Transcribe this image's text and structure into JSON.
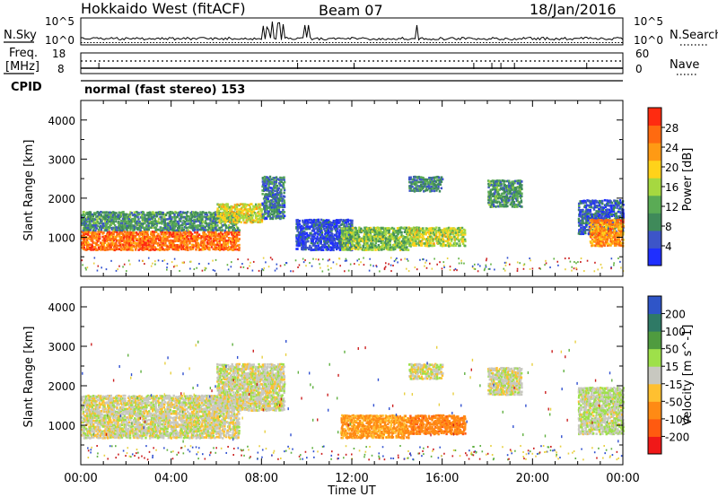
{
  "header": {
    "station": "Hokkaido West (fitACF)",
    "beam": "Beam 07",
    "date": "18/Jan/2016"
  },
  "strip": {
    "nsky_label": "N.Sky",
    "nsky_ticks": [
      "10^5",
      "10^0"
    ],
    "nsearch_label": "N.Search",
    "nsearch_ticks": [
      "10^5",
      "10^0"
    ],
    "freq_label": "Freq.",
    "freq_unit": "[MHz]",
    "freq_ticks": [
      "18",
      "8"
    ],
    "nave_label": "Nave",
    "nave_ticks": [
      "60",
      "0"
    ],
    "cpid_label": "CPID",
    "cpid_text": "normal (fast stereo) 153"
  },
  "colors": {
    "power_scale": [
      "#1f2fff",
      "#3d55c8",
      "#3f8a5a",
      "#5aab55",
      "#a6d840",
      "#ffd21a",
      "#ff9a14",
      "#ff6a10",
      "#ff2b10"
    ],
    "velocity_scale": [
      "#f01818",
      "#ff5a10",
      "#ff8a14",
      "#ffc030",
      "#c8c8c0",
      "#9ee04a",
      "#4f9b3f",
      "#2f7a66",
      "#2f55c8"
    ],
    "noise": [
      "#e8d040",
      "#cc2020",
      "#3050d0",
      "#60b040"
    ]
  },
  "chart_data": [
    {
      "type": "heatmap",
      "name": "power",
      "ylabel": "Slant Range [km]",
      "yticks": [
        "1000",
        "2000",
        "3000",
        "4000"
      ],
      "ylim": [
        0,
        4500
      ],
      "xlim": [
        "00:00",
        "24:00"
      ],
      "colorbar_label": "Power [dB]",
      "colorbar_ticks": [
        "4",
        "8",
        "12",
        "16",
        "20",
        "24",
        "28"
      ],
      "colorbar_range": [
        0,
        32
      ],
      "regions": [
        {
          "t": [
            0.0,
            7.0
          ],
          "range": [
            700,
            1200
          ],
          "level": 26
        },
        {
          "t": [
            0.0,
            7.0
          ],
          "range": [
            1200,
            1700
          ],
          "level": 10
        },
        {
          "t": [
            6.0,
            8.0
          ],
          "range": [
            1400,
            1900
          ],
          "level": 18
        },
        {
          "t": [
            8.0,
            9.0
          ],
          "range": [
            1500,
            2600
          ],
          "level": 8
        },
        {
          "t": [
            9.5,
            12.0
          ],
          "range": [
            700,
            1500
          ],
          "level": 4
        },
        {
          "t": [
            11.5,
            14.5
          ],
          "range": [
            700,
            1300
          ],
          "level": 14
        },
        {
          "t": [
            14.5,
            17.0
          ],
          "range": [
            800,
            1300
          ],
          "level": 17
        },
        {
          "t": [
            14.5,
            16.0
          ],
          "range": [
            2200,
            2600
          ],
          "level": 9
        },
        {
          "t": [
            18.0,
            19.5
          ],
          "range": [
            1800,
            2500
          ],
          "level": 10
        },
        {
          "t": [
            22.0,
            24.0
          ],
          "range": [
            1100,
            2000
          ],
          "level": 6
        },
        {
          "t": [
            22.5,
            24.0
          ],
          "range": [
            800,
            1500
          ],
          "level": 24
        }
      ]
    },
    {
      "type": "heatmap",
      "name": "velocity",
      "ylabel": "Slant Range [km]",
      "yticks": [
        "1000",
        "2000",
        "3000",
        "4000"
      ],
      "ylim": [
        0,
        4500
      ],
      "xlim": [
        "00:00",
        "24:00"
      ],
      "xlabel": "Time UT",
      "xticks": [
        "00:00",
        "04:00",
        "08:00",
        "12:00",
        "16:00",
        "20:00",
        "00:00"
      ],
      "colorbar_label": "Velocity [m s^-1]",
      "colorbar_ticks": [
        "-200",
        "-100",
        "-50",
        "-15",
        "15",
        "50",
        "100",
        "200"
      ],
      "regions": [
        {
          "t": [
            0.0,
            7.0
          ],
          "range": [
            700,
            1800
          ],
          "velocity": 0
        },
        {
          "t": [
            6.0,
            9.0
          ],
          "range": [
            1400,
            2600
          ],
          "velocity": 0
        },
        {
          "t": [
            11.5,
            14.5
          ],
          "range": [
            700,
            1300
          ],
          "velocity": -60
        },
        {
          "t": [
            14.5,
            17.0
          ],
          "range": [
            800,
            1300
          ],
          "velocity": -80
        },
        {
          "t": [
            14.5,
            16.0
          ],
          "range": [
            2200,
            2600
          ],
          "velocity": 0
        },
        {
          "t": [
            18.0,
            19.5
          ],
          "range": [
            1800,
            2500
          ],
          "velocity": 0
        },
        {
          "t": [
            22.0,
            24.0
          ],
          "range": [
            800,
            2000
          ],
          "velocity": 10
        }
      ]
    }
  ]
}
